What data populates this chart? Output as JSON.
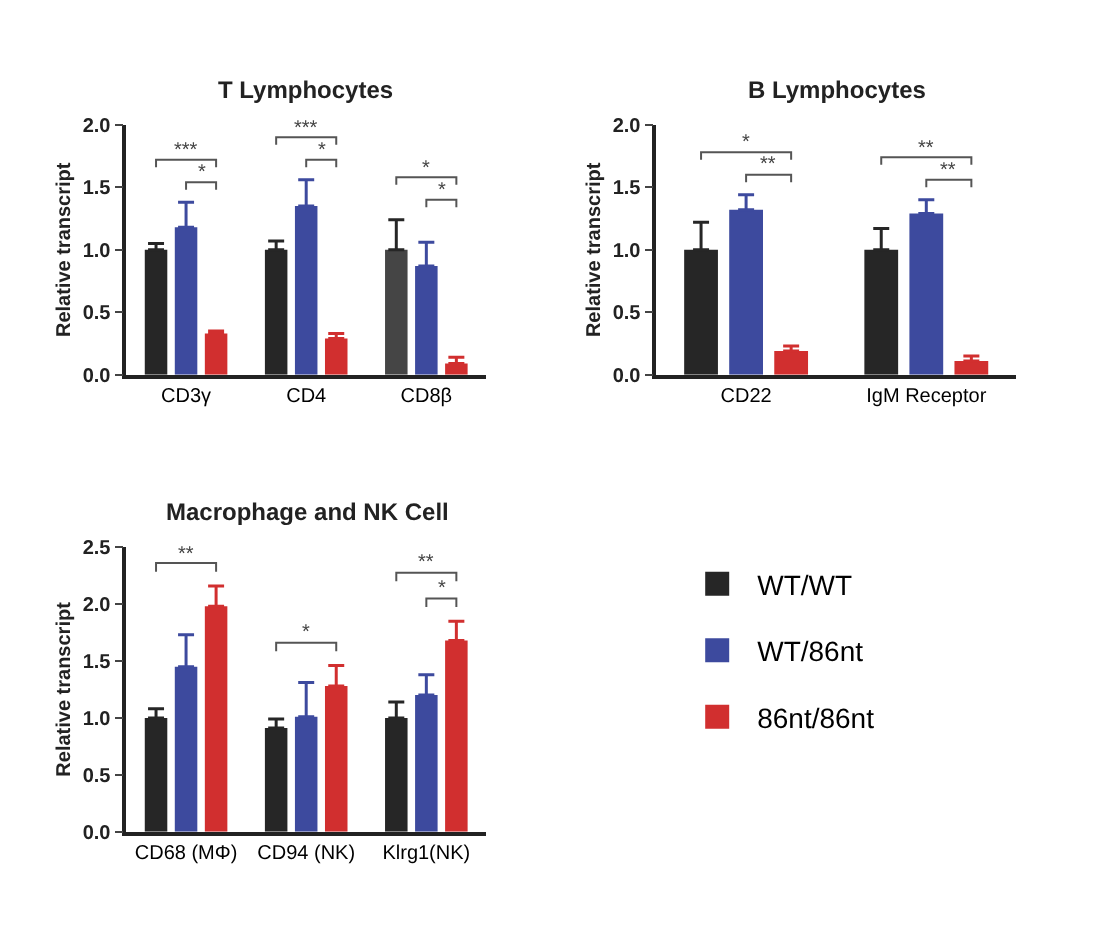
{
  "chart_data": [
    {
      "type": "bar",
      "title": "T Lymphocytes",
      "ylabel": "Relative transcript",
      "categories": [
        "CD3γ",
        "CD4",
        "CD8β"
      ],
      "series": [
        {
          "color": "#262626",
          "colors": [
            "#262626",
            "#262626",
            "#454545"
          ],
          "values": [
            1.0,
            1.0,
            1.0
          ],
          "errors": [
            [
              1.0,
              1.05
            ],
            [
              1.0,
              1.07
            ],
            [
              1.0,
              1.24
            ]
          ]
        },
        {
          "color": "#3d4a9e",
          "values": [
            1.18,
            1.35,
            0.87
          ],
          "errors": [
            [
              1.18,
              1.38
            ],
            [
              1.35,
              1.56
            ],
            [
              0.87,
              1.06
            ]
          ]
        },
        {
          "color": "#d12f2f",
          "values": [
            0.33,
            0.29,
            0.09
          ],
          "errors": [
            [
              0.33,
              0.35
            ],
            [
              0.29,
              0.33
            ],
            [
              0.09,
              0.14
            ]
          ]
        }
      ],
      "ylim": [
        0,
        2
      ],
      "yticks": [
        {
          "value": 0,
          "label": "0.0"
        },
        {
          "value": 0.5,
          "label": "0.5"
        },
        {
          "value": 1,
          "label": "1.0"
        },
        {
          "value": 1.5,
          "label": "1.5"
        },
        {
          "value": 2,
          "label": "2.0"
        }
      ],
      "annotations": [
        "***",
        "*",
        "***",
        "*",
        "*",
        "*"
      ]
    },
    {
      "type": "bar",
      "title": "B Lymphocytes",
      "ylabel": "Relative transcript",
      "categories": [
        "CD22",
        "IgM Receptor"
      ],
      "series": [
        {
          "color": "#262626",
          "values": [
            1.0,
            1.0
          ],
          "errors": [
            [
              1.0,
              1.22
            ],
            [
              1.0,
              1.17
            ]
          ]
        },
        {
          "color": "#3d4a9e",
          "values": [
            1.32,
            1.29
          ],
          "errors": [
            [
              1.32,
              1.44
            ],
            [
              1.29,
              1.4
            ]
          ]
        },
        {
          "color": "#d12f2f",
          "values": [
            0.19,
            0.11
          ],
          "errors": [
            [
              0.19,
              0.23
            ],
            [
              0.11,
              0.15
            ]
          ]
        }
      ],
      "ylim": [
        0,
        2
      ],
      "yticks": [
        {
          "value": 0,
          "label": "0.0"
        },
        {
          "value": 0.5,
          "label": "0.5"
        },
        {
          "value": 1,
          "label": "1.0"
        },
        {
          "value": 1.5,
          "label": "1.5"
        },
        {
          "value": 2,
          "label": "2.0"
        }
      ],
      "annotations": [
        "*",
        "**",
        "**",
        "**"
      ]
    },
    {
      "type": "bar",
      "title": "Macrophage and NK Cell",
      "ylabel": "Relative transcript",
      "categories": [
        "CD68 (MΦ)",
        "CD94 (NK)",
        "Klrg1(NK)"
      ],
      "series": [
        {
          "name": "WT/WT",
          "color": "#262626",
          "values": [
            1.0,
            0.91,
            1.0
          ],
          "errors": [
            [
              1.0,
              1.08
            ],
            [
              0.91,
              0.99
            ],
            [
              1.0,
              1.14
            ]
          ]
        },
        {
          "name": "WT/86nt",
          "color": "#3d4a9e",
          "values": [
            1.45,
            1.01,
            1.2
          ],
          "errors": [
            [
              1.45,
              1.73
            ],
            [
              1.01,
              1.31
            ],
            [
              1.2,
              1.38
            ]
          ]
        },
        {
          "name": "86nt/86nt",
          "color": "#d12f2f",
          "values": [
            1.98,
            1.28,
            1.68
          ],
          "errors": [
            [
              1.98,
              2.16
            ],
            [
              1.28,
              1.46
            ],
            [
              1.68,
              1.85
            ]
          ]
        }
      ],
      "ylim": [
        0,
        2.5
      ],
      "yticks": [
        {
          "value": 0,
          "label": "0.0"
        },
        {
          "value": 0.5,
          "label": "0.5"
        },
        {
          "value": 1,
          "label": "1.0"
        },
        {
          "value": 1.5,
          "label": "1.5"
        },
        {
          "value": 2,
          "label": "2.0"
        },
        {
          "value": 2.5,
          "label": "2.5"
        }
      ],
      "annotations": [
        "**",
        "*",
        "**",
        "*"
      ],
      "legend": "right"
    }
  ]
}
